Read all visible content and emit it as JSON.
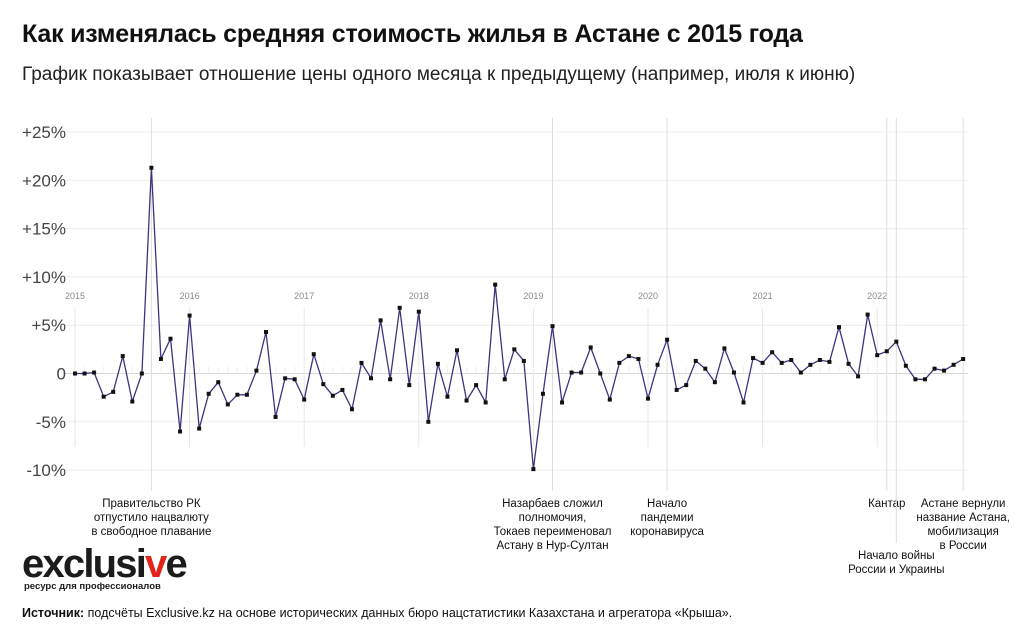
{
  "header": {
    "title": "Как изменялась средняя стоимость жилья в Астане с 2015 года",
    "subtitle": "График показывает отношение цены одного месяца к предыдущему (например, июля к июню)"
  },
  "logo": {
    "word_start": "exclusi",
    "word_accent": "v",
    "word_end": "e",
    "tagline": "ресурс для профессионалов",
    "accent_color": "#e2231a"
  },
  "footer": {
    "source_label": "Источник:",
    "source_text": "подсчёты Exclusive.kz на основе исторических данных бюро нацстатистики Казахстана и агрегатора «Крыша»."
  },
  "chart_data": {
    "type": "line",
    "line_color": "#3b3580",
    "marker_color": "#111111",
    "ylim": [
      -12,
      26
    ],
    "yticks": [
      {
        "value": 25,
        "label": "+25%"
      },
      {
        "value": 20,
        "label": "+20%"
      },
      {
        "value": 15,
        "label": "+15%"
      },
      {
        "value": 10,
        "label": "+10%"
      },
      {
        "value": 5,
        "label": "+5%"
      },
      {
        "value": 0,
        "label": "0"
      },
      {
        "value": -5,
        "label": "-5%"
      },
      {
        "value": -10,
        "label": "-10%"
      }
    ],
    "grid": true,
    "start": "2015-01",
    "years": [
      "2015",
      "2016",
      "2017",
      "2018",
      "2019",
      "2020",
      "2021",
      "2022"
    ],
    "values": [
      0.0,
      0.0,
      0.1,
      -2.4,
      -1.9,
      1.8,
      -2.9,
      0.0,
      21.3,
      1.5,
      3.6,
      -6.0,
      6.0,
      -5.7,
      -2.1,
      -0.9,
      -3.2,
      -2.2,
      -2.2,
      0.3,
      4.3,
      -4.5,
      -0.5,
      -0.6,
      -2.7,
      2.0,
      -1.1,
      -2.3,
      -1.7,
      -3.7,
      1.1,
      -0.5,
      5.5,
      -0.6,
      6.8,
      -1.2,
      6.4,
      -5.0,
      1.0,
      -2.4,
      2.4,
      -2.8,
      -1.2,
      -3.0,
      9.2,
      -0.6,
      2.5,
      1.3,
      -9.9,
      -2.1,
      4.9,
      -3.0,
      0.1,
      0.1,
      2.7,
      0.0,
      -2.7,
      1.1,
      1.8,
      1.5,
      -2.6,
      0.9,
      3.5,
      -1.7,
      -1.2,
      1.3,
      0.5,
      -0.9,
      2.6,
      0.1,
      -3.0,
      1.6,
      1.1,
      2.2,
      1.1,
      1.4,
      0.1,
      0.9,
      1.4,
      1.2,
      4.8,
      1.0,
      -0.3,
      6.1,
      1.9,
      2.3,
      3.3,
      0.8,
      -0.6,
      -0.6,
      0.5,
      0.3,
      0.9,
      1.5
    ],
    "annotations": [
      {
        "month_index": 8,
        "lines": [
          "Правительство РК",
          "отпустило нацвалюту",
          "в свободное плавание"
        ],
        "anchor": "below"
      },
      {
        "month_index": 50,
        "lines": [
          "Назарбаев сложил",
          "полномочия,",
          "Токаев переименовал",
          "Астану в Нур-Султан"
        ],
        "anchor": "below"
      },
      {
        "month_index": 62,
        "lines": [
          "Начало",
          "пандемии",
          "коронавируса"
        ],
        "anchor": "below"
      },
      {
        "month_index": 85,
        "lines": [
          "Кантар"
        ],
        "anchor": "below"
      },
      {
        "month_index": 86,
        "lines": [
          "Начало войны",
          "России и Украины"
        ],
        "anchor": "lower"
      },
      {
        "month_index": 93,
        "lines": [
          "Астане вернули",
          "название Астана,",
          "мобилизация",
          "в России"
        ],
        "anchor": "below"
      }
    ]
  }
}
